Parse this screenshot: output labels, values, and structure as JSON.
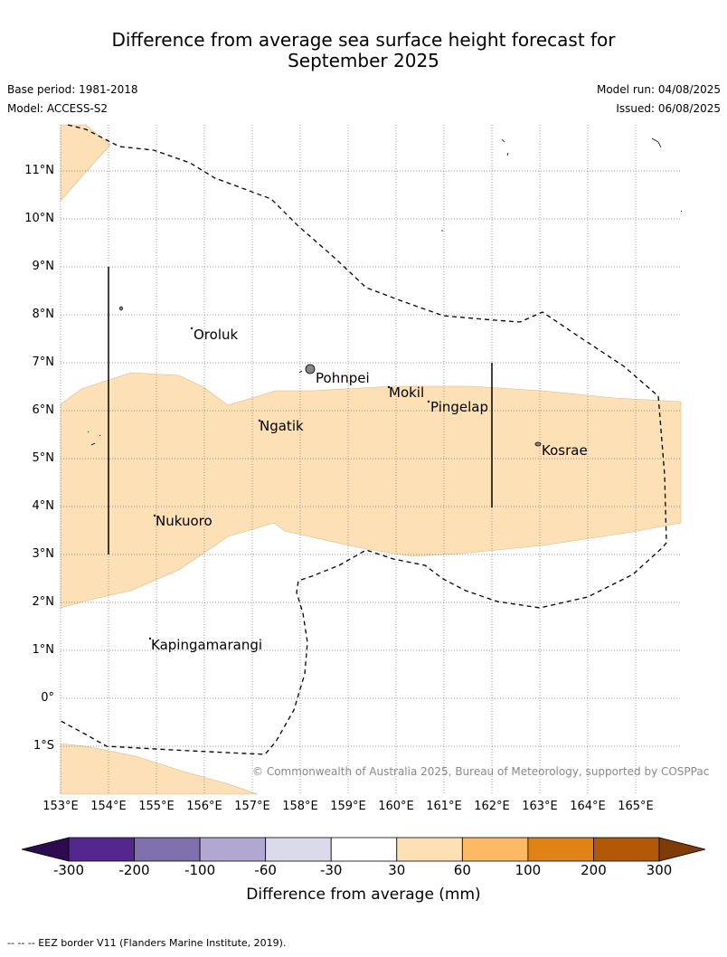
{
  "title_line1": "Difference from average sea surface height forecast for",
  "title_line2": "September 2025",
  "base_period": "Base period: 1981-2018",
  "model": "Model: ACCESS-S2",
  "model_run": "Model run: 04/08/2025",
  "issued": "Issued: 06/08/2025",
  "latitude_labels": [
    "11°N",
    "10°N",
    "9°N",
    "8°N",
    "7°N",
    "6°N",
    "5°N",
    "4°N",
    "3°N",
    "2°N",
    "1°N",
    "0°",
    "1°S"
  ],
  "longitude_labels": [
    "153°E",
    "154°E",
    "155°E",
    "156°E",
    "157°E",
    "158°E",
    "159°E",
    "160°E",
    "161°E",
    "162°E",
    "163°E",
    "164°E",
    "165°E"
  ],
  "places": {
    "oroluk": "Oroluk",
    "pohnpei": "Pohnpei",
    "mokil": "Mokil",
    "pingelap": "Pingelap",
    "ngatik": "Ngatik",
    "kosrae": "Kosrae",
    "nukuoro": "Nukuoro",
    "kapingamarangi": "Kapingamarangi"
  },
  "copyright": "© Commonwealth of Australia 2025, Bureau of Meteorology, supported by COSPPac",
  "colorbar": {
    "ticks": [
      "-300",
      "-200",
      "-100",
      "-60",
      "-30",
      "30",
      "60",
      "100",
      "200",
      "300"
    ],
    "colors": [
      "#2d0b4e",
      "#54278f",
      "#7f6fac",
      "#b0a8d0",
      "#dadaeb",
      "#ffffff",
      "#fde0b6",
      "#fdb863",
      "#e08214",
      "#b35806",
      "#7f3b08"
    ],
    "title": "Difference from average (mm)"
  },
  "eez_note": "--  --  -- EEZ border V11 (Flanders Marine Institute, 2019)."
}
